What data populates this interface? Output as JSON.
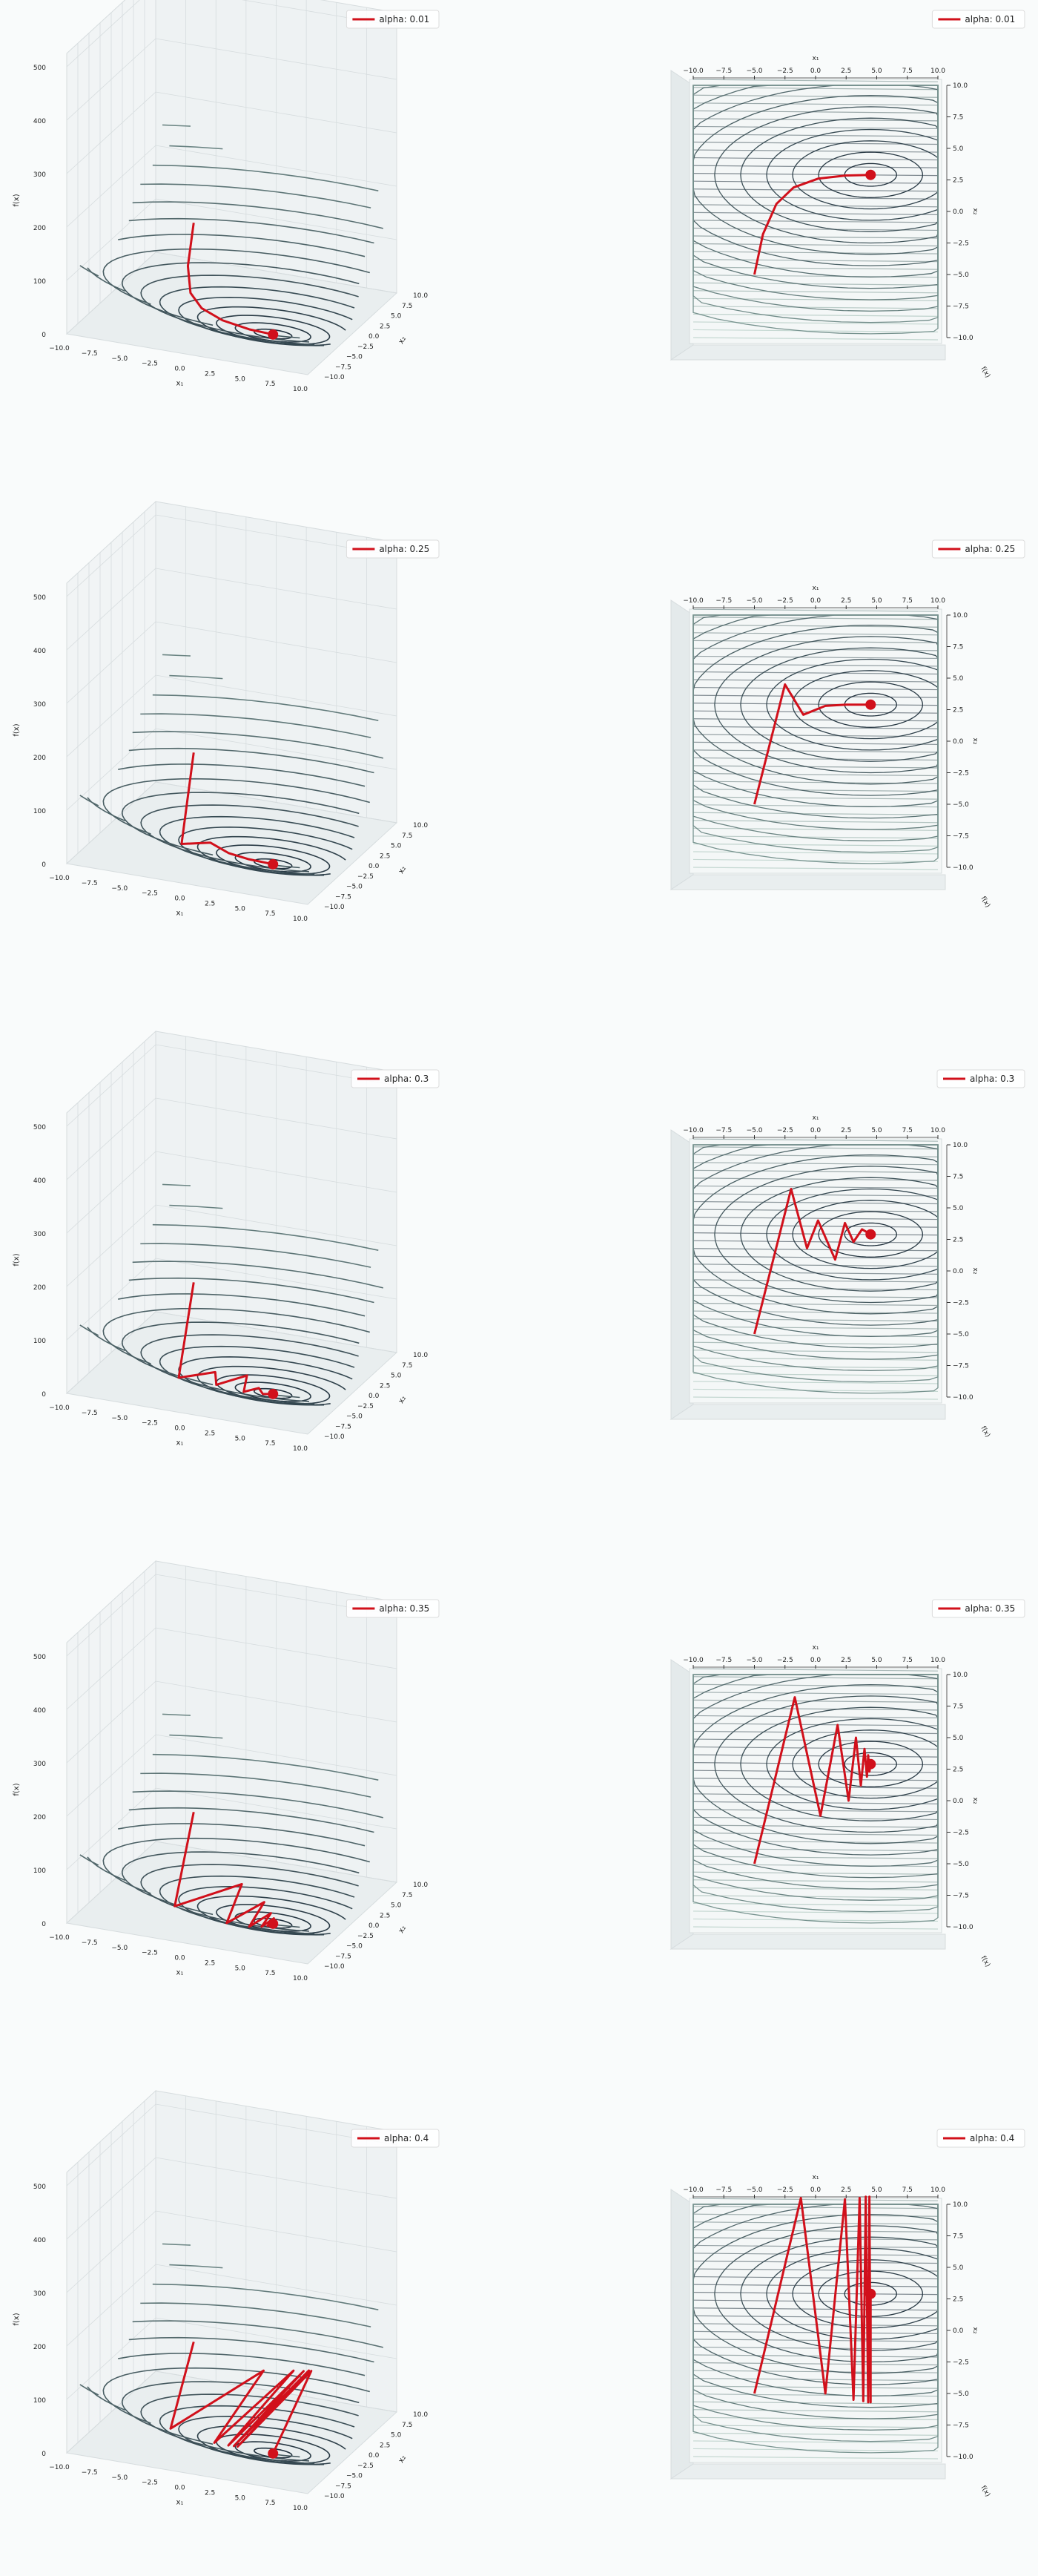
{
  "colors": {
    "background": "#f9fbfb",
    "surface_dark": "#1b2a38",
    "surface_light": "#9fc0b4",
    "path": "#d1101b",
    "axis": "#333333",
    "grid": "#d6dcde"
  },
  "chart_data": [
    {
      "type": "surface3d",
      "legend": "alpha: 0.01",
      "legend_loc": "top-right",
      "xlabel": "x₁",
      "ylabel": "x₂",
      "zlabel": "f(x)",
      "xlim": [
        -10,
        10
      ],
      "ylim": [
        -10,
        10
      ],
      "zlim": [
        0,
        500
      ],
      "xticks": [
        "−10.0",
        "−7.5",
        "−5.0",
        "−2.5",
        "0.0",
        "2.5",
        "5.0",
        "7.5",
        "10.0"
      ],
      "yticks": [
        "−10.0",
        "−7.5",
        "−5.0",
        "−2.5",
        "0.0",
        "2.5",
        "5.0",
        "7.5",
        "10.0"
      ],
      "zticks": [
        "0",
        "100",
        "200",
        "300",
        "400",
        "500"
      ],
      "path": [
        [
          -5,
          -5
        ],
        [
          -4.3,
          -1.8
        ],
        [
          -3.2,
          0.6
        ],
        [
          -1.8,
          1.9
        ],
        [
          0.2,
          2.6
        ],
        [
          2.5,
          2.85
        ],
        [
          4.5,
          2.9
        ]
      ],
      "minimum": [
        4.5,
        2.9
      ]
    },
    {
      "type": "contour3d_topview",
      "legend": "alpha: 0.01",
      "legend_loc": "top-right",
      "xlabel": "x₁",
      "ylabel": "x₂",
      "xlim": [
        -10,
        10
      ],
      "ylim": [
        -10,
        10
      ],
      "xticks": [
        "−10.0",
        "−7.5",
        "−5.0",
        "−2.5",
        "0.0",
        "2.5",
        "5.0",
        "7.5",
        "10.0"
      ],
      "yticks": [
        "−10.0",
        "−7.5",
        "−5.0",
        "−2.5",
        "0.0",
        "2.5",
        "5.0",
        "7.5",
        "10.0"
      ],
      "path": [
        [
          -5,
          -5
        ],
        [
          -4.3,
          -1.8
        ],
        [
          -3.2,
          0.6
        ],
        [
          -1.8,
          1.9
        ],
        [
          0.2,
          2.6
        ],
        [
          2.5,
          2.85
        ],
        [
          4.5,
          2.9
        ]
      ],
      "minimum": [
        4.5,
        2.9
      ]
    },
    {
      "type": "surface3d",
      "legend": "alpha: 0.25",
      "legend_loc": "top-right",
      "xlabel": "x₁",
      "ylabel": "x₂",
      "zlabel": "f(x)",
      "xlim": [
        -10,
        10
      ],
      "ylim": [
        -10,
        10
      ],
      "zlim": [
        0,
        500
      ],
      "xticks": [
        "−10.0",
        "−7.5",
        "−5.0",
        "−2.5",
        "0.0",
        "2.5",
        "5.0",
        "7.5",
        "10.0"
      ],
      "yticks": [
        "−10.0",
        "−7.5",
        "−5.0",
        "−2.5",
        "0.0",
        "2.5",
        "5.0",
        "7.5",
        "10.0"
      ],
      "zticks": [
        "0",
        "100",
        "200",
        "300",
        "400",
        "500"
      ],
      "path": [
        [
          -5,
          -5
        ],
        [
          -2.5,
          4.5
        ],
        [
          -1.0,
          2.1
        ],
        [
          0.8,
          2.8
        ],
        [
          2.5,
          2.9
        ],
        [
          4.5,
          2.9
        ]
      ],
      "minimum": [
        4.5,
        2.9
      ]
    },
    {
      "type": "contour3d_topview",
      "legend": "alpha: 0.25",
      "legend_loc": "top-right",
      "xlabel": "x₁",
      "ylabel": "x₂",
      "xlim": [
        -10,
        10
      ],
      "ylim": [
        -10,
        10
      ],
      "xticks": [
        "−10.0",
        "−7.5",
        "−5.0",
        "−2.5",
        "0.0",
        "2.5",
        "5.0",
        "7.5",
        "10.0"
      ],
      "yticks": [
        "−10.0",
        "−7.5",
        "−5.0",
        "−2.5",
        "0.0",
        "2.5",
        "5.0",
        "7.5",
        "10.0"
      ],
      "path": [
        [
          -5,
          -5
        ],
        [
          -2.5,
          4.5
        ],
        [
          -1.0,
          2.1
        ],
        [
          0.8,
          2.8
        ],
        [
          2.5,
          2.9
        ],
        [
          4.5,
          2.9
        ]
      ],
      "minimum": [
        4.5,
        2.9
      ]
    },
    {
      "type": "surface3d",
      "legend": "alpha: 0.3",
      "legend_loc": "top-right",
      "xlabel": "x₁",
      "ylabel": "x₂",
      "zlabel": "f(x)",
      "xlim": [
        -10,
        10
      ],
      "ylim": [
        -10,
        10
      ],
      "zlim": [
        0,
        500
      ],
      "xticks": [
        "−10.0",
        "−7.5",
        "−5.0",
        "−2.5",
        "0.0",
        "2.5",
        "5.0",
        "7.5",
        "10.0"
      ],
      "yticks": [
        "−10.0",
        "−7.5",
        "−5.0",
        "−2.5",
        "0.0",
        "2.5",
        "5.0",
        "7.5",
        "10.0"
      ],
      "zticks": [
        "0",
        "100",
        "200",
        "300",
        "400",
        "500"
      ],
      "path": [
        [
          -5,
          -5
        ],
        [
          -2.0,
          6.5
        ],
        [
          -0.7,
          1.8
        ],
        [
          0.2,
          4.0
        ],
        [
          1.6,
          0.9
        ],
        [
          2.4,
          3.8
        ],
        [
          3.1,
          2.3
        ],
        [
          3.8,
          3.3
        ],
        [
          4.5,
          2.9
        ]
      ],
      "minimum": [
        4.5,
        2.9
      ]
    },
    {
      "type": "contour3d_topview",
      "legend": "alpha: 0.3",
      "legend_loc": "top-right",
      "xlabel": "x₁",
      "ylabel": "x₂",
      "xlim": [
        -10,
        10
      ],
      "ylim": [
        -10,
        10
      ],
      "xticks": [
        "−10.0",
        "−7.5",
        "−5.0",
        "−2.5",
        "0.0",
        "2.5",
        "5.0",
        "7.5",
        "10.0"
      ],
      "yticks": [
        "−10.0",
        "−7.5",
        "−5.0",
        "−2.5",
        "0.0",
        "2.5",
        "5.0",
        "7.5",
        "10.0"
      ],
      "path": [
        [
          -5,
          -5
        ],
        [
          -2.0,
          6.5
        ],
        [
          -0.7,
          1.8
        ],
        [
          0.2,
          4.0
        ],
        [
          1.6,
          0.9
        ],
        [
          2.4,
          3.8
        ],
        [
          3.1,
          2.3
        ],
        [
          3.8,
          3.3
        ],
        [
          4.5,
          2.9
        ]
      ],
      "minimum": [
        4.5,
        2.9
      ]
    },
    {
      "type": "surface3d",
      "legend": "alpha: 0.35",
      "legend_loc": "top-right",
      "xlabel": "x₁",
      "ylabel": "x₂",
      "zlabel": "f(x)",
      "xlim": [
        -10,
        10
      ],
      "ylim": [
        -10,
        10
      ],
      "zlim": [
        0,
        500
      ],
      "xticks": [
        "−10.0",
        "−7.5",
        "−5.0",
        "−2.5",
        "0.0",
        "2.5",
        "5.0",
        "7.5",
        "10.0"
      ],
      "yticks": [
        "−10.0",
        "−7.5",
        "−5.0",
        "−2.5",
        "0.0",
        "2.5",
        "5.0",
        "7.5",
        "10.0"
      ],
      "zticks": [
        "0",
        "100",
        "200",
        "300",
        "400",
        "500"
      ],
      "path": [
        [
          -5,
          -5
        ],
        [
          -1.7,
          8.2
        ],
        [
          0.4,
          -1.2
        ],
        [
          1.8,
          6.0
        ],
        [
          2.7,
          0.0
        ],
        [
          3.3,
          5.0
        ],
        [
          3.7,
          1.2
        ],
        [
          4.0,
          4.1
        ],
        [
          4.2,
          1.9
        ],
        [
          4.3,
          3.6
        ],
        [
          4.4,
          2.3
        ],
        [
          4.5,
          2.9
        ]
      ],
      "minimum": [
        4.5,
        2.9
      ]
    },
    {
      "type": "contour3d_topview",
      "legend": "alpha: 0.35",
      "legend_loc": "top-right",
      "xlabel": "x₁",
      "ylabel": "x₂",
      "xlim": [
        -10,
        10
      ],
      "ylim": [
        -10,
        10
      ],
      "xticks": [
        "−10.0",
        "−7.5",
        "−5.0",
        "−2.5",
        "0.0",
        "2.5",
        "5.0",
        "7.5",
        "10.0"
      ],
      "yticks": [
        "−10.0",
        "−7.5",
        "−5.0",
        "−2.5",
        "0.0",
        "2.5",
        "5.0",
        "7.5",
        "10.0"
      ],
      "path": [
        [
          -5,
          -5
        ],
        [
          -1.7,
          8.2
        ],
        [
          0.4,
          -1.2
        ],
        [
          1.8,
          6.0
        ],
        [
          2.7,
          0.0
        ],
        [
          3.3,
          5.0
        ],
        [
          3.7,
          1.2
        ],
        [
          4.0,
          4.1
        ],
        [
          4.2,
          1.9
        ],
        [
          4.3,
          3.6
        ],
        [
          4.4,
          2.3
        ],
        [
          4.5,
          2.9
        ]
      ],
      "minimum": [
        4.5,
        2.9
      ]
    },
    {
      "type": "surface3d",
      "legend": "alpha: 0.4",
      "legend_loc": "top-right",
      "xlabel": "x₁",
      "ylabel": "x₂",
      "zlabel": "f(x)",
      "xlim": [
        -10,
        10
      ],
      "ylim": [
        -10,
        10
      ],
      "zlim": [
        0,
        500
      ],
      "xticks": [
        "−10.0",
        "−7.5",
        "−5.0",
        "−2.5",
        "0.0",
        "2.5",
        "5.0",
        "7.5",
        "10.0"
      ],
      "yticks": [
        "−10.0",
        "−7.5",
        "−5.0",
        "−2.5",
        "0.0",
        "2.5",
        "5.0",
        "7.5",
        "10.0"
      ],
      "zticks": [
        "0",
        "100",
        "200",
        "300",
        "400",
        "500"
      ],
      "path": [
        [
          -5,
          -5
        ],
        [
          -1.2,
          10.5
        ],
        [
          0.8,
          -5.0
        ],
        [
          2.4,
          10.4
        ],
        [
          3.1,
          -5.5
        ],
        [
          3.6,
          10.5
        ],
        [
          3.9,
          -5.6
        ],
        [
          4.1,
          10.6
        ],
        [
          4.3,
          -5.7
        ],
        [
          4.4,
          10.6
        ],
        [
          4.5,
          -5.7
        ],
        [
          4.5,
          2.9
        ]
      ],
      "minimum": [
        4.5,
        2.9
      ]
    },
    {
      "type": "contour3d_topview",
      "legend": "alpha: 0.4",
      "legend_loc": "top-right",
      "xlabel": "x₁",
      "ylabel": "x₂",
      "xlim": [
        -10,
        10
      ],
      "ylim": [
        -10,
        10
      ],
      "xticks": [
        "−10.0",
        "−7.5",
        "−5.0",
        "−2.5",
        "0.0",
        "2.5",
        "5.0",
        "7.5",
        "10.0"
      ],
      "yticks": [
        "−10.0",
        "−7.5",
        "−5.0",
        "−2.5",
        "0.0",
        "2.5",
        "5.0",
        "7.5",
        "10.0"
      ],
      "path": [
        [
          -5,
          -5
        ],
        [
          -1.2,
          10.5
        ],
        [
          0.8,
          -5.0
        ],
        [
          2.4,
          10.4
        ],
        [
          3.1,
          -5.5
        ],
        [
          3.6,
          10.5
        ],
        [
          3.9,
          -5.6
        ],
        [
          4.1,
          10.6
        ],
        [
          4.3,
          -5.7
        ],
        [
          4.4,
          10.6
        ],
        [
          4.5,
          -5.7
        ],
        [
          4.5,
          2.9
        ]
      ],
      "minimum": [
        4.5,
        2.9
      ]
    }
  ]
}
